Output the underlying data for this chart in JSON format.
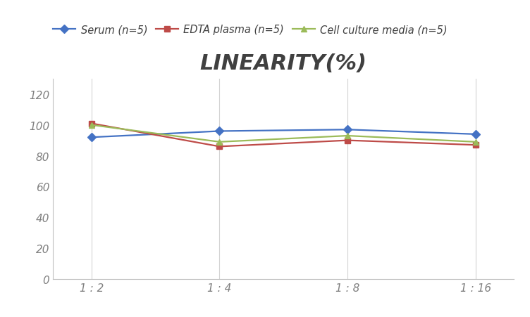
{
  "title": "LINEARITY(%)",
  "x_labels": [
    "1 : 2",
    "1 : 4",
    "1 : 8",
    "1 : 16"
  ],
  "series": [
    {
      "name": "Serum (n=5)",
      "values": [
        92,
        96,
        97,
        94
      ],
      "color": "#4472C4",
      "marker": "D",
      "marker_face": "#4472C4"
    },
    {
      "name": "EDTA plasma (n=5)",
      "values": [
        101,
        86,
        90,
        87
      ],
      "color": "#BE4B48",
      "marker": "s",
      "marker_face": "#BE4B48"
    },
    {
      "name": "Cell culture media (n=5)",
      "values": [
        100,
        89,
        93,
        89
      ],
      "color": "#9BBB59",
      "marker": "^",
      "marker_face": "#9BBB59"
    }
  ],
  "ylim": [
    0,
    130
  ],
  "yticks": [
    0,
    20,
    40,
    60,
    80,
    100,
    120
  ],
  "bg_color": "#FFFFFF",
  "grid_color": "#D3D3D3",
  "title_fontsize": 22,
  "title_color": "#404040",
  "legend_fontsize": 10.5,
  "tick_fontsize": 11,
  "tick_color": "#808080"
}
